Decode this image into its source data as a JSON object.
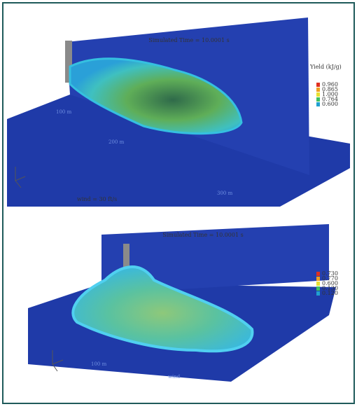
{
  "panels": [
    {
      "title": "Simulated Time = 10.0001 s",
      "legend_title": "Yield (kJ/g)",
      "legend_values": [
        "0.960",
        "0.865",
        "1.000",
        "0.764",
        "0.600"
      ],
      "distance_labels": [
        "100 m",
        "200 m",
        "300 m"
      ],
      "wind_label": "wind = 30 ft/s"
    },
    {
      "title": "Simulated Time = 10.0001 s",
      "legend_values": [
        "0.730",
        "0.770",
        "0.600",
        "0.130",
        "0.120"
      ],
      "distance_labels": [
        "100 m",
        "wind"
      ]
    }
  ]
}
